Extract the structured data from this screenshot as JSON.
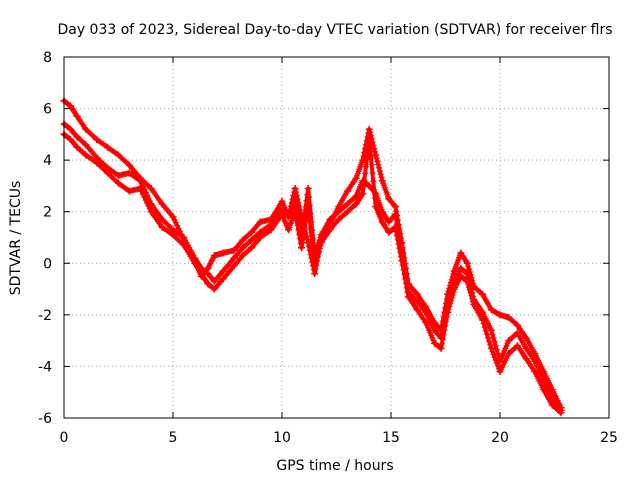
{
  "chart_data": {
    "type": "scatter",
    "title": "Day 033 of 2023, Sidereal Day-to-day VTEC variation (SDTVAR) for receiver flrs",
    "xlabel": "GPS time / hours",
    "ylabel": "SDTVAR / TECUs",
    "xlim": [
      0,
      25
    ],
    "ylim": [
      -6,
      8
    ],
    "xticks": [
      0,
      5,
      10,
      15,
      20,
      25
    ],
    "yticks": [
      -6,
      -4,
      -2,
      0,
      2,
      4,
      6,
      8
    ],
    "xtick_labels": [
      "0",
      "5",
      "10",
      "15",
      "20",
      "25"
    ],
    "ytick_labels": [
      "-6",
      "-4",
      "-2",
      "0",
      "2",
      "4",
      "6",
      "8"
    ],
    "grid": true,
    "marker": "plus",
    "color": "#ff0000",
    "series": [
      {
        "name": "trace-1",
        "x": [
          0.0,
          0.3,
          0.6,
          1.0,
          1.5,
          2.0,
          2.5,
          3.0,
          3.5,
          4.0,
          4.5,
          5.0,
          5.5,
          6.0,
          6.3,
          6.6,
          6.9,
          7.3,
          7.8,
          8.2,
          8.6,
          9.0,
          9.5,
          10.0,
          10.3,
          10.6,
          10.9,
          11.2,
          11.5,
          11.8,
          12.2,
          12.6,
          13.0,
          13.4,
          13.7,
          14.0,
          14.3,
          14.6,
          14.9,
          15.2,
          15.5,
          15.8,
          16.2,
          16.6,
          17.0,
          17.3,
          17.6,
          17.9,
          18.2,
          18.5,
          18.8,
          19.2,
          19.6,
          20.0,
          20.4,
          20.8,
          21.2,
          21.6,
          22.0,
          22.4,
          22.8
        ],
        "y": [
          6.3,
          6.1,
          5.7,
          5.2,
          4.8,
          4.5,
          4.2,
          3.8,
          3.3,
          2.9,
          2.3,
          1.8,
          0.9,
          0.1,
          -0.5,
          -0.2,
          0.3,
          0.4,
          0.5,
          0.9,
          1.2,
          1.6,
          1.7,
          2.4,
          1.8,
          2.9,
          1.8,
          0.8,
          -0.4,
          0.9,
          1.5,
          2.2,
          2.8,
          3.3,
          4.0,
          5.2,
          4.2,
          3.2,
          2.5,
          2.2,
          0.8,
          -0.8,
          -1.2,
          -1.7,
          -2.3,
          -2.6,
          -1.2,
          -0.3,
          0.4,
          0.0,
          -0.9,
          -1.2,
          -1.8,
          -2.0,
          -2.1,
          -2.4,
          -2.9,
          -3.5,
          -4.2,
          -4.9,
          -5.6
        ]
      },
      {
        "name": "trace-2",
        "x": [
          0.0,
          0.3,
          0.6,
          1.0,
          1.5,
          2.0,
          2.5,
          3.0,
          3.5,
          4.0,
          4.5,
          5.0,
          5.5,
          6.0,
          6.3,
          6.6,
          6.9,
          7.3,
          7.8,
          8.2,
          8.6,
          9.0,
          9.5,
          10.0,
          10.3,
          10.6,
          10.9,
          11.2,
          11.5,
          11.8,
          12.2,
          12.6,
          13.0,
          13.4,
          13.7,
          14.0,
          14.3,
          14.6,
          14.9,
          15.2,
          15.5,
          15.8,
          16.2,
          16.6,
          17.0,
          17.3,
          17.6,
          17.9,
          18.2,
          18.5,
          18.8,
          19.2,
          19.6,
          20.0,
          20.4,
          20.8,
          21.2,
          21.6,
          22.0,
          22.4,
          22.8
        ],
        "y": [
          5.4,
          5.2,
          4.9,
          4.6,
          4.1,
          3.7,
          3.4,
          3.5,
          3.2,
          2.3,
          1.7,
          1.3,
          1.0,
          0.2,
          -0.2,
          -0.4,
          -0.7,
          -0.3,
          0.2,
          0.6,
          0.9,
          1.2,
          1.5,
          2.1,
          1.8,
          2.4,
          1.0,
          2.9,
          0.3,
          1.1,
          1.7,
          2.0,
          2.3,
          2.6,
          3.2,
          3.0,
          2.7,
          2.0,
          1.6,
          1.9,
          0.4,
          -1.1,
          -1.5,
          -1.9,
          -2.6,
          -2.9,
          -1.6,
          -0.7,
          -0.2,
          -0.4,
          -1.4,
          -1.9,
          -2.6,
          -3.8,
          -3.0,
          -2.7,
          -3.3,
          -3.8,
          -4.5,
          -5.2,
          -5.7
        ]
      },
      {
        "name": "trace-3",
        "x": [
          0.0,
          0.3,
          0.6,
          1.0,
          1.5,
          2.0,
          2.5,
          3.0,
          3.5,
          4.0,
          4.5,
          5.0,
          5.5,
          6.0,
          6.3,
          6.6,
          6.9,
          7.3,
          7.8,
          8.2,
          8.6,
          9.0,
          9.5,
          10.0,
          10.3,
          10.6,
          10.9,
          11.2,
          11.5,
          11.8,
          12.2,
          12.6,
          13.0,
          13.4,
          13.7,
          14.0,
          14.3,
          14.6,
          14.9,
          15.2,
          15.5,
          15.8,
          16.2,
          16.6,
          17.0,
          17.3,
          17.6,
          17.9,
          18.2,
          18.5,
          18.8,
          19.2,
          19.6,
          20.0,
          20.4,
          20.8,
          21.2,
          21.6,
          22.0,
          22.4,
          22.8
        ],
        "y": [
          5.0,
          4.8,
          4.5,
          4.2,
          3.9,
          3.5,
          3.1,
          2.8,
          2.9,
          2.0,
          1.4,
          1.1,
          0.7,
          0.0,
          -0.4,
          -0.8,
          -1.0,
          -0.6,
          -0.1,
          0.3,
          0.6,
          1.0,
          1.3,
          1.9,
          1.3,
          2.0,
          0.6,
          2.2,
          -0.1,
          0.8,
          1.3,
          1.7,
          2.0,
          2.3,
          2.7,
          4.8,
          2.2,
          1.6,
          1.2,
          1.4,
          0.1,
          -1.3,
          -1.8,
          -2.3,
          -3.1,
          -3.3,
          -1.9,
          -1.0,
          -0.5,
          -0.7,
          -1.6,
          -2.2,
          -3.3,
          -4.2,
          -3.5,
          -3.2,
          -3.7,
          -4.2,
          -4.9,
          -5.5,
          -5.8
        ]
      }
    ]
  }
}
